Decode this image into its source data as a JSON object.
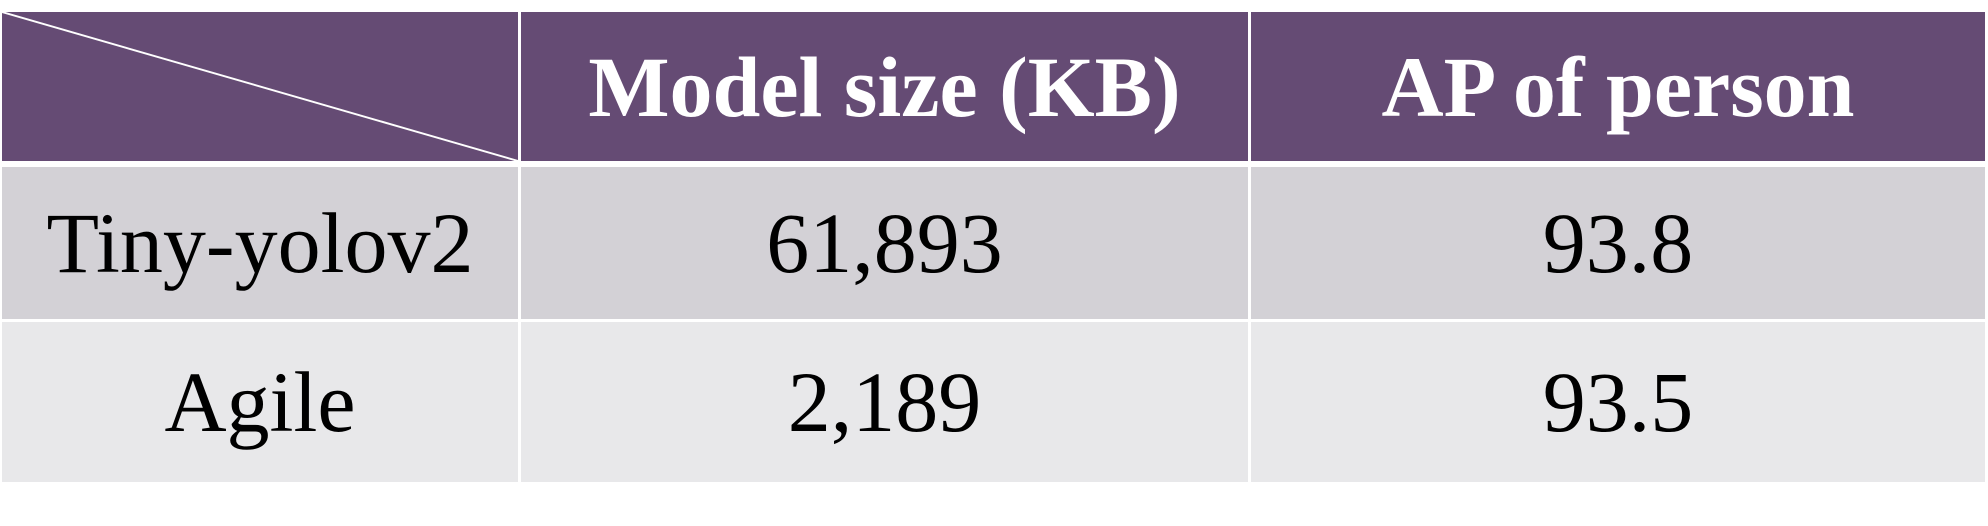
{
  "table": {
    "header": {
      "corner": "",
      "col1": "Model size (KB)",
      "col2": "AP of person"
    },
    "rows": [
      {
        "model": "Tiny-yolov2",
        "size": "61,893",
        "ap": "93.8"
      },
      {
        "model": "Agile",
        "size": "2,189",
        "ap": "93.5"
      }
    ]
  },
  "colors": {
    "header_bg": "#654b74",
    "header_text": "#ffffff",
    "row1_bg": "#d3d1d6",
    "row2_bg": "#e8e8ea",
    "grid_lines": "#ffffff"
  }
}
